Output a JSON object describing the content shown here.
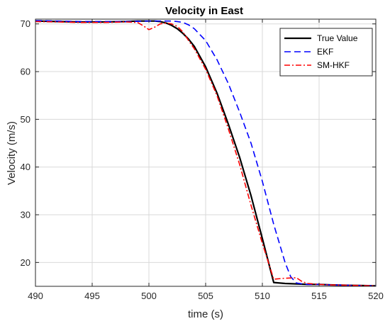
{
  "chart_data": {
    "type": "line",
    "title": "Velocity in East",
    "xlabel": "time (s)",
    "ylabel": "Velocity (m/s)",
    "xlim": [
      490,
      520
    ],
    "ylim": [
      15,
      71
    ],
    "xticks": [
      490,
      495,
      500,
      505,
      510,
      515,
      520
    ],
    "yticks": [
      20,
      30,
      40,
      50,
      60,
      70
    ],
    "grid": true,
    "legend_position": "top-right",
    "series": [
      {
        "name": "True Value",
        "color": "#000000",
        "style": "solid",
        "x": [
          490,
          492,
          494,
          496,
          498,
          499,
          500,
          500.5,
          501,
          501.5,
          502,
          502.5,
          503,
          503.5,
          504,
          505,
          506,
          507,
          508,
          509,
          510,
          511,
          512,
          513,
          514,
          515,
          516,
          518,
          520
        ],
        "y": [
          70.6,
          70.5,
          70.4,
          70.4,
          70.5,
          70.6,
          70.6,
          70.6,
          70.5,
          70.2,
          69.7,
          69.0,
          68.0,
          66.8,
          65.3,
          61.0,
          55.5,
          49.0,
          42.0,
          34.0,
          25.0,
          15.8,
          15.6,
          15.5,
          15.4,
          15.4,
          15.3,
          15.2,
          15.1
        ]
      },
      {
        "name": "EKF",
        "color": "#0000ff",
        "style": "dashed",
        "x": [
          490,
          492,
          494,
          496,
          498,
          500,
          501,
          502,
          502.5,
          503,
          503.5,
          504,
          505,
          506,
          507,
          508,
          509,
          510,
          511,
          512,
          512.5,
          513,
          513.5,
          514,
          515,
          516,
          518,
          520
        ],
        "y": [
          70.7,
          70.6,
          70.5,
          70.5,
          70.5,
          70.6,
          70.6,
          70.6,
          70.5,
          70.3,
          69.8,
          69.0,
          66.5,
          62.5,
          57.5,
          51.5,
          45.0,
          37.0,
          28.0,
          20.0,
          17.0,
          15.7,
          15.5,
          15.4,
          15.4,
          15.3,
          15.2,
          15.1
        ]
      },
      {
        "name": "SM-HKF",
        "color": "#ff0000",
        "style": "dashdot",
        "x": [
          490,
          492,
          494,
          496,
          498,
          499,
          499.5,
          500,
          500.5,
          501,
          501.5,
          502,
          502.5,
          503,
          503.5,
          504,
          505,
          506,
          507,
          508,
          509,
          510,
          511,
          512,
          513,
          513.5,
          514,
          515,
          516,
          518,
          520
        ],
        "y": [
          70.5,
          70.4,
          70.3,
          70.3,
          70.4,
          70.3,
          69.6,
          68.8,
          69.3,
          70.0,
          70.2,
          70.0,
          69.5,
          68.3,
          66.5,
          64.8,
          60.5,
          55.0,
          48.0,
          40.5,
          32.0,
          24.0,
          16.5,
          16.7,
          16.8,
          16.0,
          15.6,
          15.4,
          15.3,
          15.2,
          15.1
        ]
      }
    ]
  }
}
